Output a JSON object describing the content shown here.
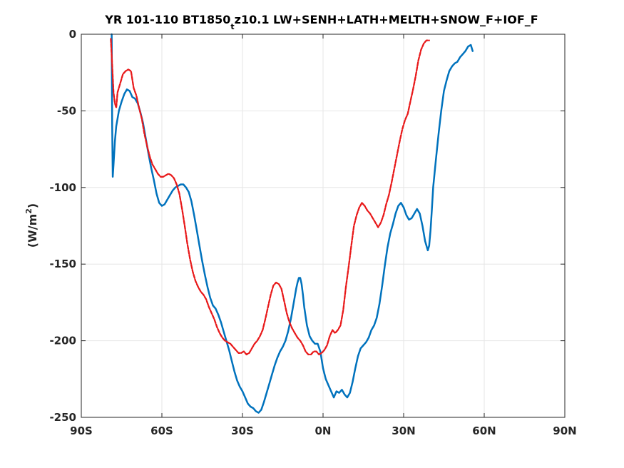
{
  "chart_data": {
    "type": "line",
    "title": {
      "main": "YR 101-110 BT1850",
      "sub": "t",
      "rest": "z10.1 LW+SENH+LATH+MELTH+SNOW_F+IOF_F"
    },
    "xlabel": "",
    "ylabel": {
      "base": "(W/m",
      "sup": "2",
      "close": ")"
    },
    "xlim": [
      -90,
      90
    ],
    "ylim": [
      -250,
      0
    ],
    "grid": true,
    "x_ticks": [
      {
        "value": -90,
        "label": "90S"
      },
      {
        "value": -60,
        "label": "60S"
      },
      {
        "value": -30,
        "label": "30S"
      },
      {
        "value": 0,
        "label": "0N"
      },
      {
        "value": 30,
        "label": "30N"
      },
      {
        "value": 60,
        "label": "60N"
      },
      {
        "value": 90,
        "label": "90N"
      }
    ],
    "y_ticks": [
      {
        "value": 0,
        "label": "0"
      },
      {
        "value": -50,
        "label": "-50"
      },
      {
        "value": -100,
        "label": "-100"
      },
      {
        "value": -150,
        "label": "-150"
      },
      {
        "value": -200,
        "label": "-200"
      },
      {
        "value": -250,
        "label": "-250"
      }
    ],
    "series": [
      {
        "color": "#0072BD",
        "style": "solid",
        "points": [
          [
            -78.7,
            0
          ],
          [
            -78.5,
            -60
          ],
          [
            -78.3,
            -93
          ],
          [
            -78.0,
            -85
          ],
          [
            -77.5,
            -70
          ],
          [
            -77.0,
            -60
          ],
          [
            -76.0,
            -50
          ],
          [
            -75.0,
            -44
          ],
          [
            -74.0,
            -39
          ],
          [
            -73.0,
            -36
          ],
          [
            -72.0,
            -37
          ],
          [
            -71.0,
            -41
          ],
          [
            -70.0,
            -42
          ],
          [
            -69.0,
            -45
          ],
          [
            -68.0,
            -51
          ],
          [
            -67.0,
            -58
          ],
          [
            -66.0,
            -68
          ],
          [
            -65.0,
            -78
          ],
          [
            -64.0,
            -87
          ],
          [
            -63.0,
            -95
          ],
          [
            -62.0,
            -104
          ],
          [
            -61.0,
            -110
          ],
          [
            -60.0,
            -112
          ],
          [
            -59.0,
            -111
          ],
          [
            -58.0,
            -108
          ],
          [
            -57.0,
            -105
          ],
          [
            -56.0,
            -102
          ],
          [
            -55.0,
            -100
          ],
          [
            -54.0,
            -99
          ],
          [
            -53.0,
            -98
          ],
          [
            -52.0,
            -98
          ],
          [
            -51.0,
            -100
          ],
          [
            -50.0,
            -103
          ],
          [
            -49.0,
            -109
          ],
          [
            -48.0,
            -118
          ],
          [
            -47.0,
            -128
          ],
          [
            -46.0,
            -138
          ],
          [
            -45.0,
            -148
          ],
          [
            -44.0,
            -157
          ],
          [
            -43.0,
            -165
          ],
          [
            -42.0,
            -172
          ],
          [
            -41.0,
            -177
          ],
          [
            -40.0,
            -179
          ],
          [
            -39.0,
            -183
          ],
          [
            -38.0,
            -188
          ],
          [
            -37.0,
            -194
          ],
          [
            -36.0,
            -200
          ],
          [
            -35.0,
            -206
          ],
          [
            -34.0,
            -213
          ],
          [
            -33.0,
            -220
          ],
          [
            -32.0,
            -226
          ],
          [
            -31.0,
            -230
          ],
          [
            -30.0,
            -233
          ],
          [
            -29.0,
            -237
          ],
          [
            -28.0,
            -241
          ],
          [
            -27.0,
            -243
          ],
          [
            -26.0,
            -244
          ],
          [
            -25.0,
            -246
          ],
          [
            -24.0,
            -247
          ],
          [
            -23.0,
            -245
          ],
          [
            -22.0,
            -240
          ],
          [
            -21.0,
            -234
          ],
          [
            -20.0,
            -228
          ],
          [
            -19.0,
            -222
          ],
          [
            -18.0,
            -216
          ],
          [
            -17.0,
            -211
          ],
          [
            -16.0,
            -207
          ],
          [
            -15.0,
            -204
          ],
          [
            -14.0,
            -200
          ],
          [
            -13.0,
            -194
          ],
          [
            -12.0,
            -186
          ],
          [
            -11.0,
            -176
          ],
          [
            -10.0,
            -166
          ],
          [
            -9.5,
            -162
          ],
          [
            -9.0,
            -159
          ],
          [
            -8.5,
            -159
          ],
          [
            -8.0,
            -163
          ],
          [
            -7.5,
            -170
          ],
          [
            -7.0,
            -178
          ],
          [
            -6.0,
            -190
          ],
          [
            -5.0,
            -197
          ],
          [
            -4.0,
            -200
          ],
          [
            -3.0,
            -202
          ],
          [
            -2.0,
            -202
          ],
          [
            -1.0,
            -207
          ],
          [
            0.0,
            -218
          ],
          [
            1.0,
            -225
          ],
          [
            2.0,
            -229
          ],
          [
            3.0,
            -233
          ],
          [
            4.0,
            -237
          ],
          [
            5.0,
            -233
          ],
          [
            6.0,
            -234
          ],
          [
            7.0,
            -232
          ],
          [
            8.0,
            -235
          ],
          [
            9.0,
            -237
          ],
          [
            10.0,
            -234
          ],
          [
            11.0,
            -227
          ],
          [
            12.0,
            -218
          ],
          [
            13.0,
            -210
          ],
          [
            14.0,
            -205
          ],
          [
            15.0,
            -203
          ],
          [
            16.0,
            -201
          ],
          [
            17.0,
            -198
          ],
          [
            18.0,
            -193
          ],
          [
            19.0,
            -190
          ],
          [
            20.0,
            -185
          ],
          [
            21.0,
            -176
          ],
          [
            22.0,
            -164
          ],
          [
            23.0,
            -151
          ],
          [
            24.0,
            -139
          ],
          [
            25.0,
            -130
          ],
          [
            26.0,
            -124
          ],
          [
            27.0,
            -117
          ],
          [
            28.0,
            -112
          ],
          [
            29.0,
            -110
          ],
          [
            30.0,
            -113
          ],
          [
            31.0,
            -118
          ],
          [
            32.0,
            -121
          ],
          [
            33.0,
            -120
          ],
          [
            34.0,
            -117
          ],
          [
            35.0,
            -114
          ],
          [
            36.0,
            -117
          ],
          [
            37.0,
            -125
          ],
          [
            38.0,
            -135
          ],
          [
            39.0,
            -141
          ],
          [
            39.5,
            -138
          ],
          [
            40.0,
            -128
          ],
          [
            40.5,
            -115
          ],
          [
            41.0,
            -100
          ],
          [
            42.0,
            -82
          ],
          [
            43.0,
            -65
          ],
          [
            44.0,
            -50
          ],
          [
            45.0,
            -37
          ],
          [
            46.0,
            -30
          ],
          [
            47.0,
            -24
          ],
          [
            48.0,
            -21
          ],
          [
            49.0,
            -19
          ],
          [
            50.0,
            -18
          ],
          [
            51.0,
            -15
          ],
          [
            52.0,
            -13
          ],
          [
            53.0,
            -11
          ],
          [
            54.0,
            -8
          ],
          [
            55.0,
            -7
          ],
          [
            55.7,
            -11
          ]
        ]
      },
      {
        "color": "#E8191A",
        "style": "dashed",
        "points": [
          [
            -79.0,
            -3
          ],
          [
            -78.5,
            -20
          ],
          [
            -78.0,
            -38
          ],
          [
            -77.5,
            -45
          ],
          [
            -77.0,
            -48
          ],
          [
            -76.5,
            -38
          ],
          [
            -75.5,
            -32
          ],
          [
            -74.5,
            -26
          ],
          [
            -73.5,
            -24
          ],
          [
            -72.5,
            -23
          ],
          [
            -71.5,
            -24
          ],
          [
            -70.5,
            -35
          ],
          [
            -69.5,
            -40
          ],
          [
            -68.5,
            -48
          ],
          [
            -67.5,
            -55
          ],
          [
            -66.5,
            -65
          ],
          [
            -65.5,
            -73
          ],
          [
            -64.5,
            -80
          ],
          [
            -63.5,
            -85
          ],
          [
            -62.5,
            -88
          ],
          [
            -61.5,
            -91
          ],
          [
            -60.5,
            -93
          ],
          [
            -59.5,
            -93
          ],
          [
            -58.5,
            -92
          ],
          [
            -57.5,
            -91
          ],
          [
            -56.5,
            -92
          ],
          [
            -55.5,
            -94
          ],
          [
            -54.5,
            -98
          ],
          [
            -53.5,
            -104
          ],
          [
            -52.5,
            -114
          ],
          [
            -51.5,
            -125
          ],
          [
            -50.5,
            -137
          ],
          [
            -49.5,
            -147
          ],
          [
            -48.5,
            -155
          ],
          [
            -47.5,
            -161
          ],
          [
            -46.5,
            -165
          ],
          [
            -45.5,
            -168
          ],
          [
            -44.5,
            -170
          ],
          [
            -43.5,
            -173
          ],
          [
            -42.5,
            -178
          ],
          [
            -41.5,
            -182
          ],
          [
            -40.5,
            -186
          ],
          [
            -39.5,
            -191
          ],
          [
            -38.5,
            -195
          ],
          [
            -37.5,
            -198
          ],
          [
            -36.5,
            -200
          ],
          [
            -35.5,
            -201
          ],
          [
            -34.5,
            -202
          ],
          [
            -33.5,
            -204
          ],
          [
            -32.5,
            -206
          ],
          [
            -31.5,
            -208
          ],
          [
            -30.5,
            -208
          ],
          [
            -29.5,
            -207
          ],
          [
            -28.5,
            -209
          ],
          [
            -27.5,
            -208
          ],
          [
            -26.5,
            -205
          ],
          [
            -25.5,
            -202
          ],
          [
            -24.5,
            -200
          ],
          [
            -23.5,
            -197
          ],
          [
            -22.5,
            -193
          ],
          [
            -21.5,
            -186
          ],
          [
            -20.5,
            -178
          ],
          [
            -19.5,
            -170
          ],
          [
            -18.5,
            -164
          ],
          [
            -17.5,
            -162
          ],
          [
            -16.5,
            -163
          ],
          [
            -15.5,
            -166
          ],
          [
            -14.5,
            -174
          ],
          [
            -13.5,
            -182
          ],
          [
            -12.5,
            -188
          ],
          [
            -11.5,
            -192
          ],
          [
            -10.5,
            -195
          ],
          [
            -9.5,
            -198
          ],
          [
            -8.5,
            -200
          ],
          [
            -7.5,
            -203
          ],
          [
            -6.5,
            -207
          ],
          [
            -5.5,
            -209
          ],
          [
            -4.5,
            -209
          ],
          [
            -3.5,
            -207
          ],
          [
            -2.5,
            -207
          ],
          [
            -1.5,
            -209
          ],
          [
            -0.5,
            -208
          ],
          [
            0.5,
            -206
          ],
          [
            1.5,
            -203
          ],
          [
            2.5,
            -197
          ],
          [
            3.5,
            -193
          ],
          [
            4.5,
            -195
          ],
          [
            5.5,
            -193
          ],
          [
            6.5,
            -190
          ],
          [
            7.5,
            -180
          ],
          [
            8.5,
            -165
          ],
          [
            9.5,
            -152
          ],
          [
            10.5,
            -138
          ],
          [
            11.5,
            -125
          ],
          [
            12.5,
            -118
          ],
          [
            13.5,
            -113
          ],
          [
            14.5,
            -110
          ],
          [
            15.5,
            -112
          ],
          [
            16.5,
            -115
          ],
          [
            17.5,
            -117
          ],
          [
            18.5,
            -120
          ],
          [
            19.5,
            -123
          ],
          [
            20.5,
            -126
          ],
          [
            21.5,
            -123
          ],
          [
            22.5,
            -118
          ],
          [
            23.5,
            -111
          ],
          [
            24.5,
            -105
          ],
          [
            25.5,
            -97
          ],
          [
            26.5,
            -88
          ],
          [
            27.5,
            -79
          ],
          [
            28.5,
            -70
          ],
          [
            29.5,
            -62
          ],
          [
            30.5,
            -56
          ],
          [
            31.5,
            -52
          ],
          [
            32.5,
            -44
          ],
          [
            33.5,
            -36
          ],
          [
            34.5,
            -27
          ],
          [
            35.5,
            -17
          ],
          [
            36.5,
            -10
          ],
          [
            37.5,
            -6
          ],
          [
            38.5,
            -4
          ],
          [
            39.5,
            -4
          ]
        ]
      }
    ]
  }
}
